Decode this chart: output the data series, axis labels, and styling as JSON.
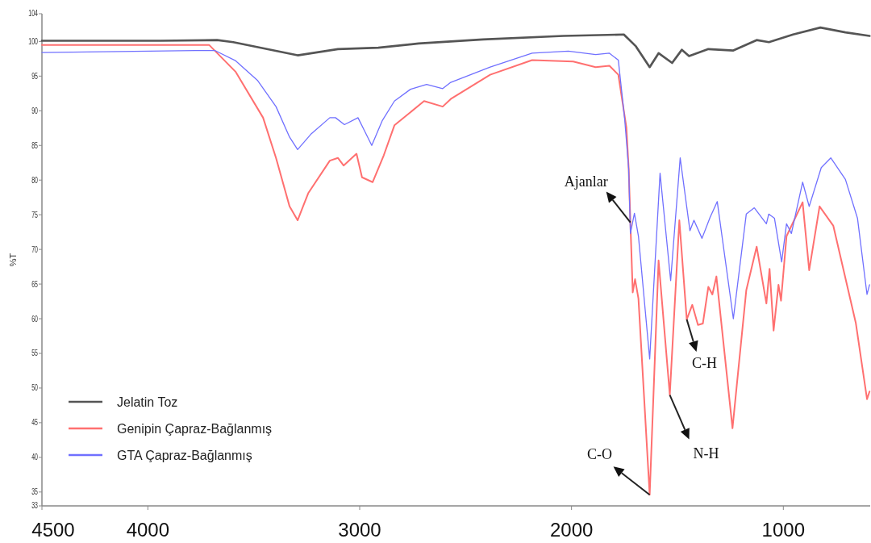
{
  "chart_data": {
    "type": "line",
    "ylabel": "%T",
    "xlim": [
      4500,
      590
    ],
    "xticks": [
      4500,
      4000,
      3000,
      2000,
      1000
    ],
    "ylim": [
      33,
      104
    ],
    "yticks": [
      33,
      35,
      40,
      45,
      50,
      55,
      60,
      65,
      70,
      75,
      80,
      85,
      90,
      95,
      100,
      104
    ],
    "grid": false,
    "legend": "bottom left",
    "marker": "none",
    "line_style": "solid",
    "series": [
      {
        "name": "Jelatin Toz",
        "color": "#555555",
        "x": [
          4500,
          3940,
          3673,
          3597,
          3293,
          3103,
          2912,
          2722,
          2418,
          2038,
          1753,
          1696,
          1631,
          1589,
          1525,
          1479,
          1445,
          1354,
          1236,
          1126,
          1068,
          954,
          825,
          707,
          593
        ],
        "values": [
          100.1,
          100.1,
          100.2,
          99.9,
          98.0,
          98.9,
          99.1,
          99.7,
          100.3,
          100.8,
          101.0,
          99.3,
          96.3,
          98.3,
          96.9,
          98.8,
          97.9,
          98.9,
          98.7,
          100.2,
          99.9,
          101.0,
          102.0,
          101.3,
          100.8
        ]
      },
      {
        "name": "Genipin Çapraz-Bağlanmış",
        "color": "#ff7070",
        "x": [
          4500,
          3711,
          3585,
          3456,
          3395,
          3331,
          3293,
          3243,
          3141,
          3103,
          3076,
          3015,
          2989,
          2939,
          2886,
          2836,
          2696,
          2608,
          2570,
          2384,
          2186,
          1992,
          1886,
          1821,
          1779,
          1741,
          1730,
          1722,
          1711,
          1700,
          1684,
          1631,
          1589,
          1536,
          1491,
          1456,
          1430,
          1403,
          1380,
          1354,
          1335,
          1316,
          1240,
          1175,
          1126,
          1080,
          1065,
          1046,
          1023,
          1011,
          985,
          909,
          878,
          829,
          764,
          658,
          605,
          593
        ],
        "values": [
          99.5,
          99.5,
          95.6,
          89.0,
          83.2,
          76.2,
          74.2,
          78.1,
          82.8,
          83.2,
          82.1,
          83.8,
          80.4,
          79.7,
          83.6,
          87.9,
          91.4,
          90.6,
          91.7,
          95.2,
          97.3,
          97.1,
          96.3,
          96.5,
          95.2,
          87.6,
          81.6,
          73.9,
          63.8,
          65.7,
          62.9,
          34.6,
          68.4,
          49.0,
          74.2,
          59.9,
          62.0,
          59.1,
          59.3,
          64.6,
          63.5,
          66.1,
          44.2,
          64.1,
          70.4,
          62.2,
          67.2,
          58.3,
          64.9,
          62.6,
          71.9,
          76.8,
          67.0,
          76.2,
          73.4,
          59.4,
          48.4,
          49.5
        ]
      },
      {
        "name": "GTA Çapraz-Bağlanmış",
        "color": "#7070ff",
        "x": [
          4500,
          3776,
          3684,
          3585,
          3483,
          3395,
          3331,
          3293,
          3228,
          3141,
          3114,
          3072,
          3008,
          2977,
          2943,
          2893,
          2836,
          2760,
          2684,
          2608,
          2570,
          2384,
          2186,
          2015,
          1886,
          1821,
          1779,
          1749,
          1730,
          1722,
          1703,
          1684,
          1631,
          1582,
          1532,
          1487,
          1441,
          1422,
          1384,
          1346,
          1312,
          1236,
          1175,
          1137,
          1080,
          1069,
          1042,
          1008,
          985,
          962,
          909,
          878,
          821,
          776,
          707,
          650,
          605,
          593
        ],
        "values": [
          98.4,
          98.7,
          98.7,
          97.2,
          94.4,
          90.6,
          86.2,
          84.4,
          86.7,
          89.0,
          89.0,
          88.0,
          89.0,
          87.1,
          85.0,
          88.6,
          91.4,
          93.1,
          93.8,
          93.2,
          94.1,
          96.3,
          98.3,
          98.6,
          98.1,
          98.3,
          97.3,
          88.8,
          81.6,
          72.3,
          75.2,
          71.9,
          54.2,
          81.0,
          65.5,
          83.2,
          72.7,
          74.2,
          71.6,
          74.6,
          76.9,
          60.0,
          75.1,
          76.0,
          73.7,
          75.1,
          74.5,
          68.2,
          73.7,
          72.3,
          79.7,
          76.2,
          81.8,
          83.2,
          80.1,
          74.5,
          63.5,
          64.9
        ]
      }
    ],
    "annotations": [
      {
        "text": "Ajanlar",
        "x": 1722,
        "y": 73.9
      },
      {
        "text": "C-O",
        "x": 1631,
        "y": 34.6
      },
      {
        "text": "N-H",
        "x": 1536,
        "y": 49.0
      },
      {
        "text": "C-H",
        "x": 1456,
        "y": 59.9
      }
    ]
  }
}
